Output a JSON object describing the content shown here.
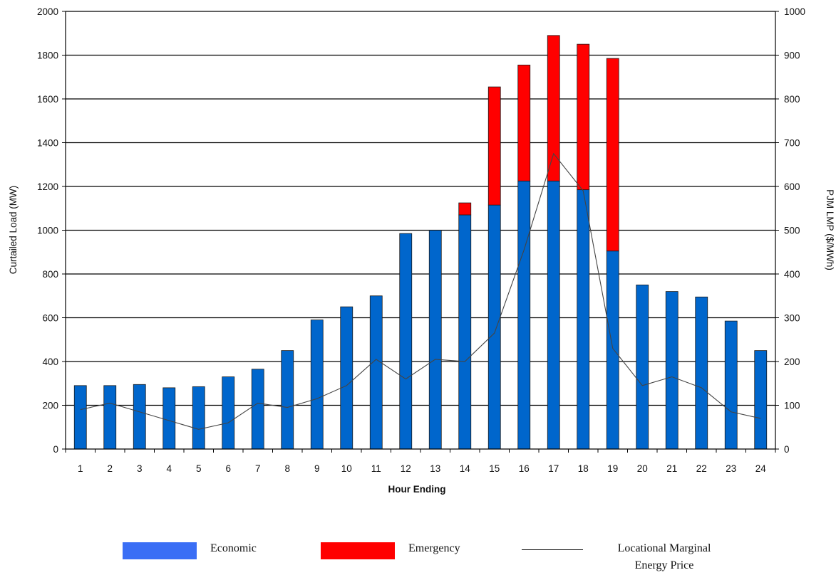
{
  "chart_data": {
    "type": "bar",
    "stacked": true,
    "categories": [
      "1",
      "2",
      "3",
      "4",
      "5",
      "6",
      "7",
      "8",
      "9",
      "10",
      "11",
      "12",
      "13",
      "14",
      "15",
      "16",
      "17",
      "18",
      "19",
      "20",
      "21",
      "22",
      "23",
      "24"
    ],
    "series": [
      {
        "name": "Economic",
        "type": "bar",
        "axis": "left",
        "color": "#0066cc",
        "values": [
          290,
          290,
          295,
          280,
          285,
          330,
          365,
          450,
          590,
          650,
          700,
          985,
          1000,
          1070,
          1115,
          1225,
          1225,
          1185,
          905,
          750,
          720,
          695,
          585,
          450
        ]
      },
      {
        "name": "Emergency",
        "type": "bar",
        "axis": "left",
        "color": "#ff0000",
        "values": [
          0,
          0,
          0,
          0,
          0,
          0,
          0,
          0,
          0,
          0,
          0,
          0,
          0,
          55,
          540,
          530,
          665,
          665,
          880,
          0,
          0,
          0,
          0,
          0
        ]
      },
      {
        "name": "Locational Marginal Energy Price",
        "type": "line",
        "axis": "right",
        "color": "#444444",
        "values": [
          90,
          105,
          85,
          65,
          45,
          60,
          105,
          95,
          115,
          145,
          205,
          160,
          205,
          200,
          265,
          455,
          675,
          590,
          230,
          145,
          165,
          140,
          85,
          70
        ]
      }
    ],
    "xlabel": "Hour Ending",
    "ylabel": "Curtailed Load (MW)",
    "y2label": "PJM LMP ($/MWh)",
    "ylim": [
      0,
      2000
    ],
    "y2lim": [
      0,
      1000
    ],
    "yticks": [
      0,
      200,
      400,
      600,
      800,
      1000,
      1200,
      1400,
      1600,
      1800,
      2000
    ],
    "y2ticks": [
      0,
      100,
      200,
      300,
      400,
      500,
      600,
      700,
      800,
      900,
      1000
    ],
    "grid": true,
    "legend_position": "bottom",
    "legend": [
      {
        "label": "Economic",
        "color": "#3a6ef5",
        "kind": "box"
      },
      {
        "label": "Emergency",
        "color": "#ff0000",
        "kind": "box"
      },
      {
        "label_line1": "Locational Marginal",
        "label_line2": "Energy Price",
        "color": "#111111",
        "kind": "line"
      }
    ]
  }
}
